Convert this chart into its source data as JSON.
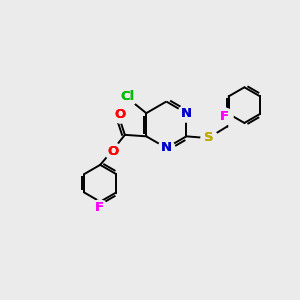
{
  "bg_color": "#ebebeb",
  "atom_colors": {
    "C": "#000000",
    "N": "#0000cc",
    "O": "#ff0000",
    "S": "#bbaa00",
    "Cl": "#00bb00",
    "F": "#ff00ff"
  },
  "bond_lw": 1.4,
  "font_size": 9.5
}
